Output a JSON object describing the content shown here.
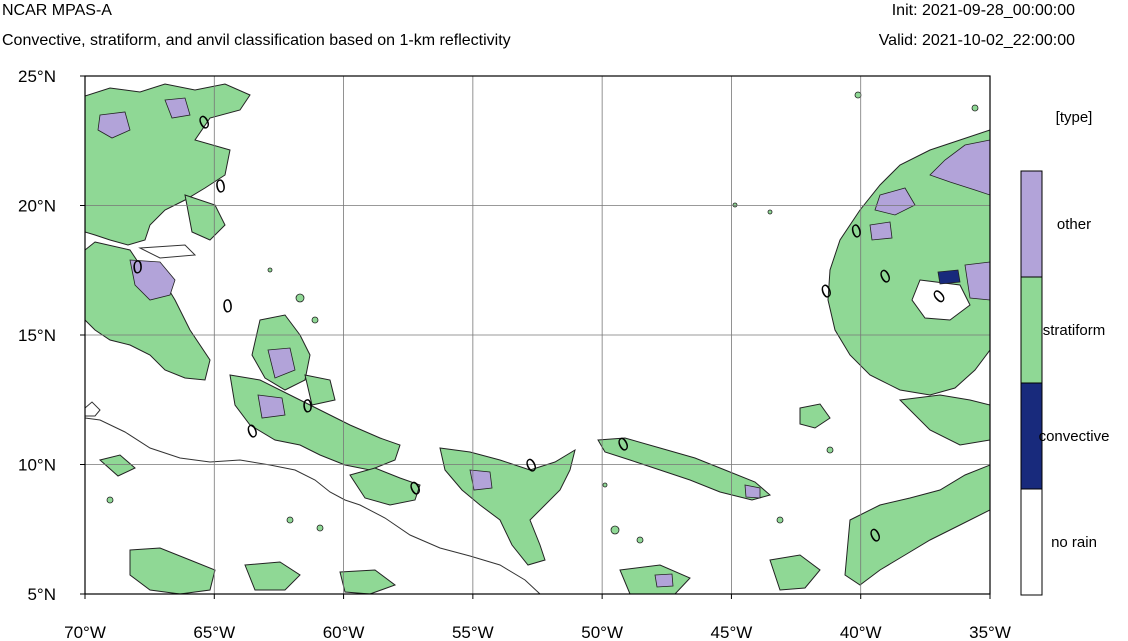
{
  "header": {
    "title": "NCAR MPAS-A",
    "subtitle": "Convective, stratiform, and anvil classification based on 1-km reflectivity",
    "init": "Init: 2021-09-28_00:00:00",
    "valid": "Valid: 2021-10-02_22:00:00"
  },
  "map": {
    "lon_range": [
      -70,
      -35
    ],
    "lat_range": [
      5,
      25
    ],
    "x_ticks": [
      "70°W",
      "65°W",
      "60°W",
      "55°W",
      "50°W",
      "45°W",
      "40°W",
      "35°W"
    ],
    "y_ticks": [
      "25°N",
      "20°N",
      "15°N",
      "10°N",
      "5°N"
    ],
    "grid": true,
    "contour_label": "0"
  },
  "legend": {
    "title": "[type]",
    "items": [
      {
        "label": "other",
        "color": "#b2a3d9"
      },
      {
        "label": "stratiform",
        "color": "#8fd895"
      },
      {
        "label": "convective",
        "color": "#182a7c"
      },
      {
        "label": "no rain",
        "color": "#ffffff"
      }
    ]
  }
}
